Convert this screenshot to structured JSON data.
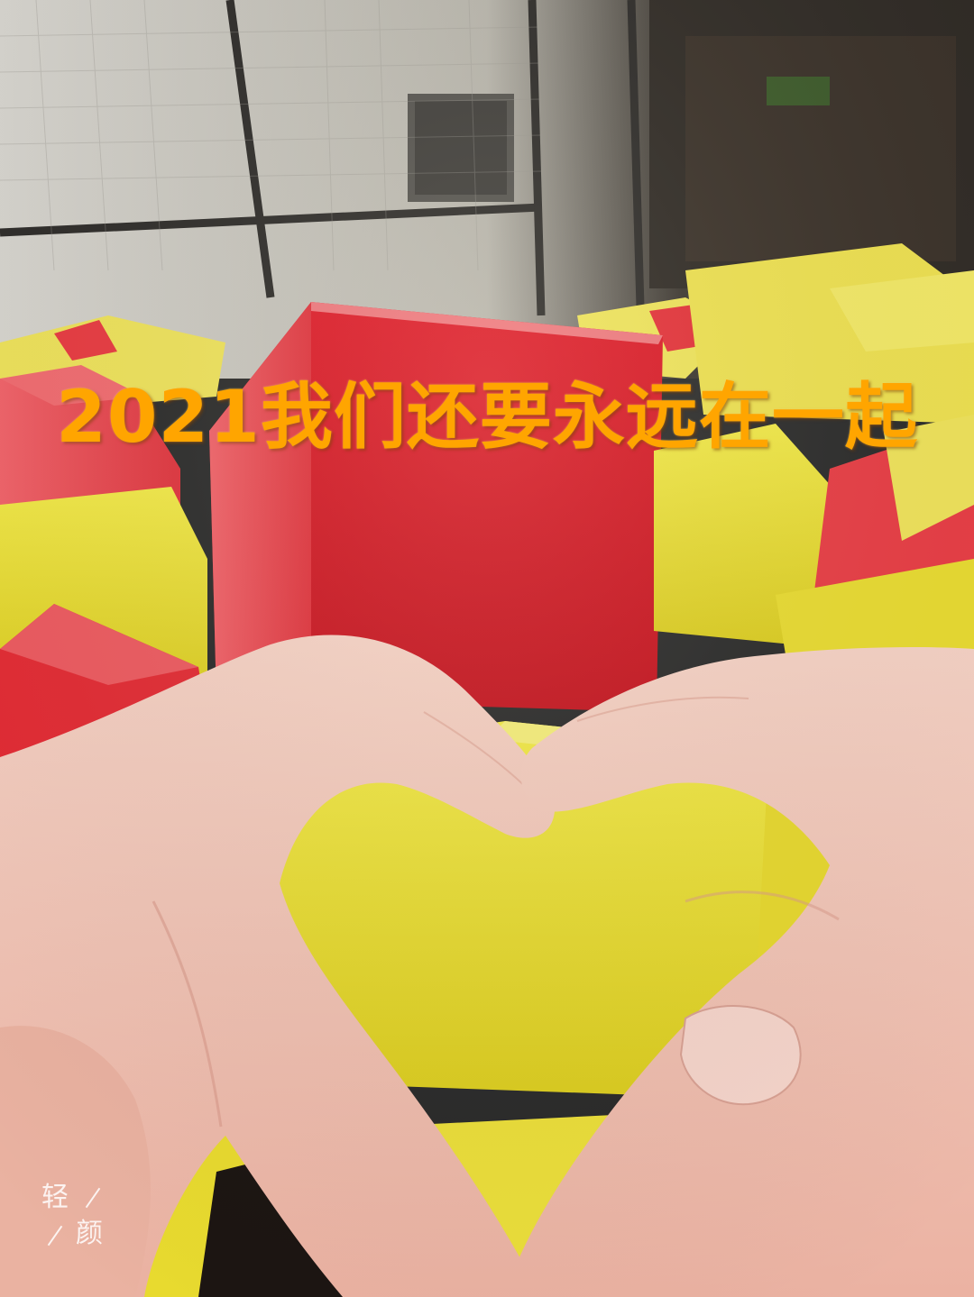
{
  "photo": {
    "caption": "2021我们还要永远在一起",
    "watermark": {
      "char1": "轻",
      "char2": "颜"
    }
  },
  "colors": {
    "caption": "#ffa500",
    "foam_red": "#e0202c",
    "foam_yellow": "#ecdf2a",
    "skin": "#f2c3b4"
  }
}
